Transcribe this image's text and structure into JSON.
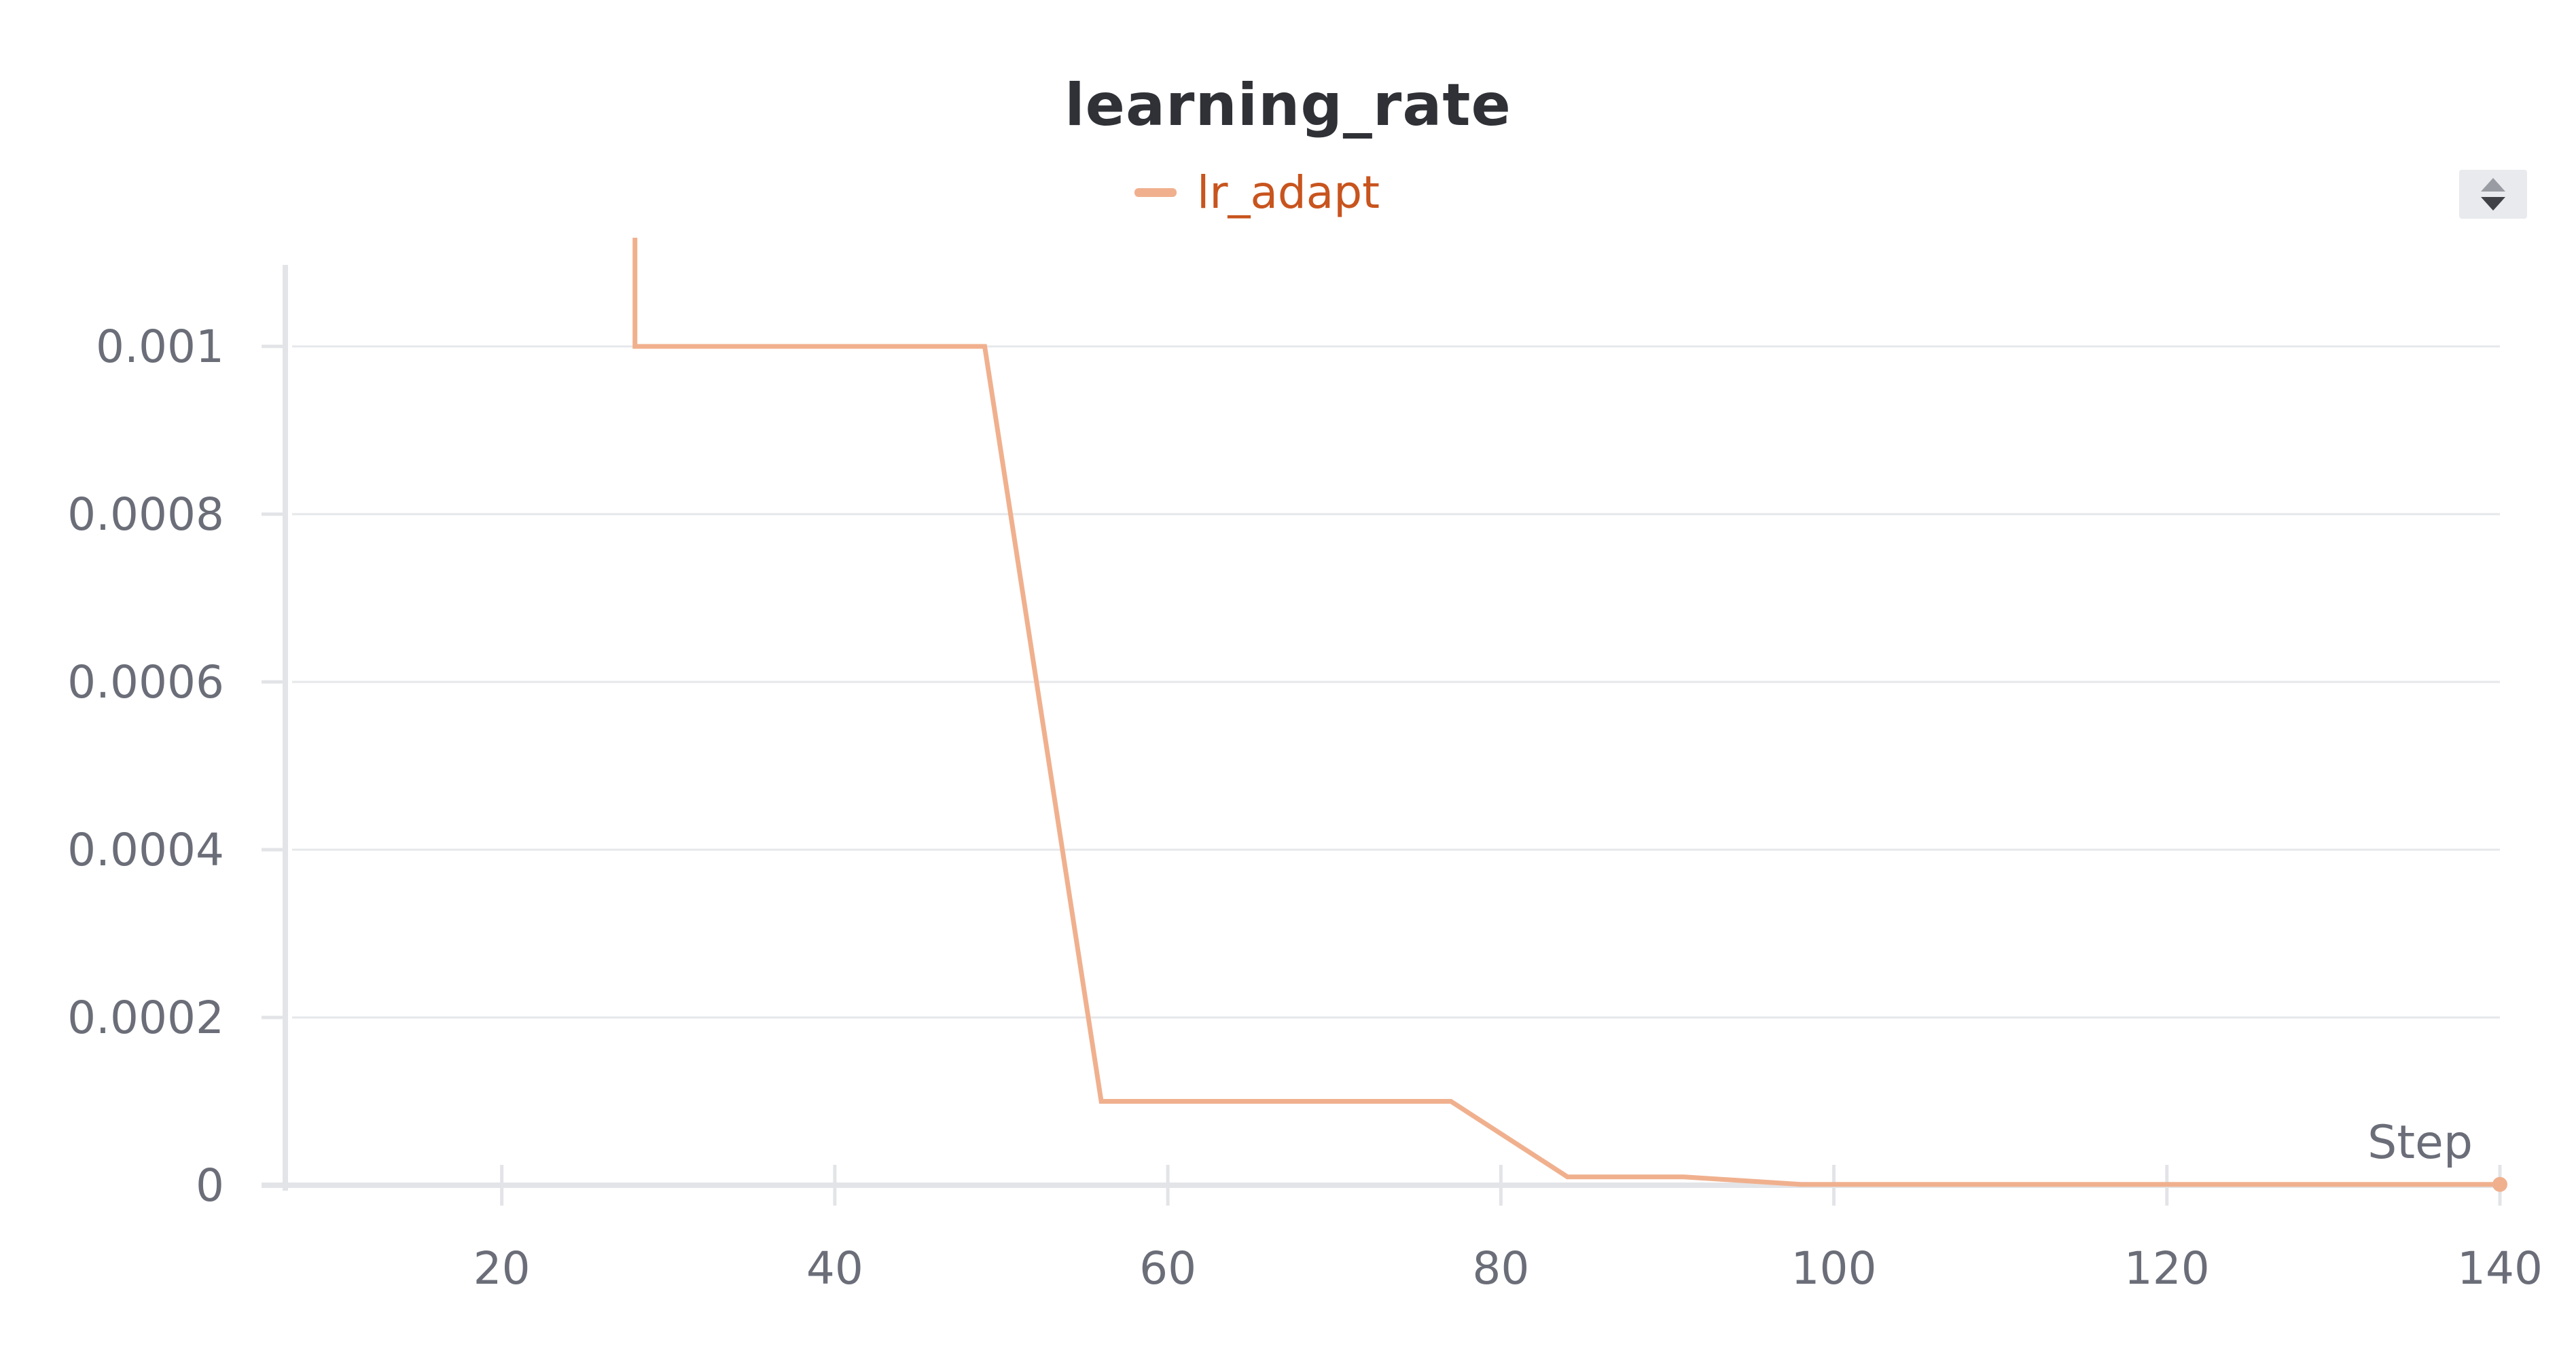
{
  "chart_data": {
    "type": "line",
    "title": "learning_rate",
    "xlabel": "Step",
    "ylabel": "",
    "xlim": [
      7,
      140
    ],
    "ylim": [
      0,
      0.0011
    ],
    "x_ticks": [
      20,
      40,
      60,
      80,
      100,
      120,
      140
    ],
    "x_tick_labels": [
      "20",
      "40",
      "60",
      "80",
      "100",
      "120",
      "140"
    ],
    "y_ticks": [
      0,
      0.0002,
      0.0004,
      0.0006,
      0.0008,
      0.001
    ],
    "y_tick_labels": [
      "0",
      "0.0002",
      "0.0004",
      "0.0006",
      "0.0008",
      "0.001"
    ],
    "grid": true,
    "legend_position": "top-center",
    "series": [
      {
        "name": "lr_adapt",
        "color": "#f0b08e",
        "x": [
          28,
          28,
          49,
          56,
          77,
          84,
          91,
          98,
          105,
          112,
          119,
          126,
          133,
          140
        ],
        "y": [
          0.00115,
          0.001,
          0.001,
          0.0001,
          0.0001,
          1e-05,
          1e-05,
          1e-06,
          1e-06,
          1e-06,
          1e-06,
          1e-06,
          1e-06,
          1e-06
        ]
      }
    ]
  }
}
